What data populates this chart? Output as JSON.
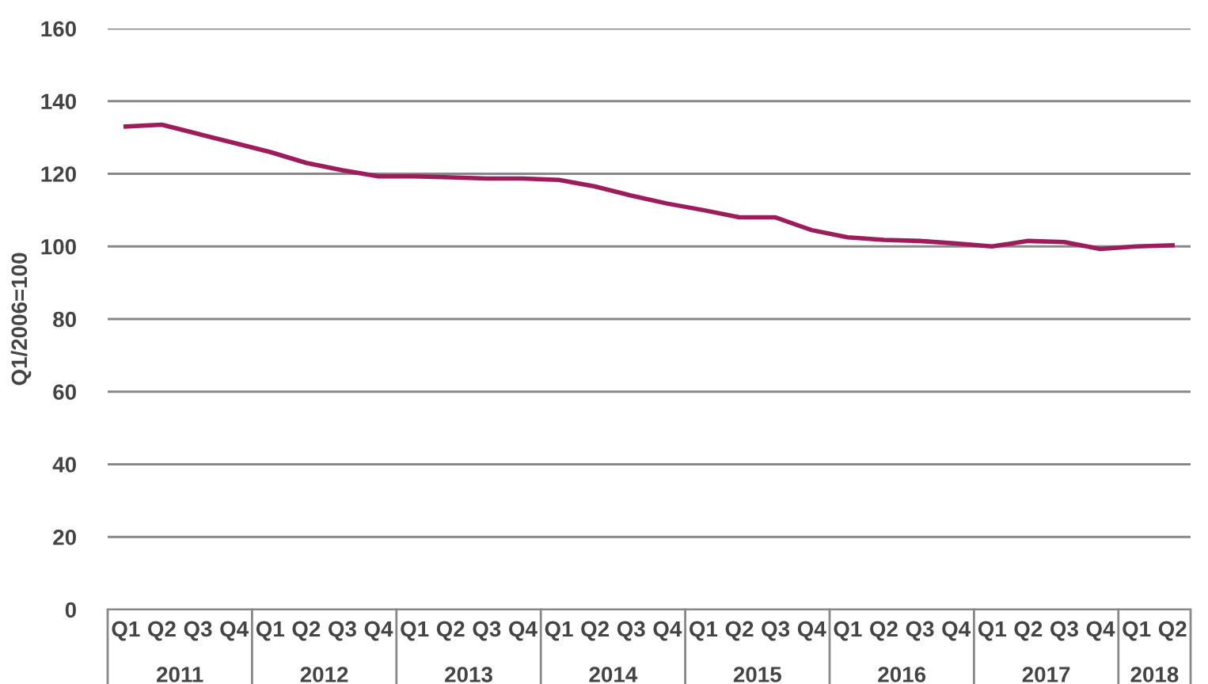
{
  "chart_data": {
    "type": "line",
    "ylabel": "Q1/2006=100",
    "categories": [
      "Q1",
      "Q2",
      "Q3",
      "Q4",
      "Q1",
      "Q2",
      "Q3",
      "Q4",
      "Q1",
      "Q2",
      "Q3",
      "Q4",
      "Q1",
      "Q2",
      "Q3",
      "Q4",
      "Q1",
      "Q2",
      "Q3",
      "Q4",
      "Q1",
      "Q2",
      "Q3",
      "Q4",
      "Q1",
      "Q2",
      "Q3",
      "Q4",
      "Q1",
      "Q2"
    ],
    "series": [
      {
        "color": "#9c1c5c",
        "values": [
          133,
          133.5,
          131,
          128.5,
          126,
          123,
          121,
          119.3,
          119.3,
          119,
          118.7,
          118.7,
          118.3,
          116.5,
          114,
          111.8,
          110,
          108,
          108,
          104.5,
          102.5,
          101.8,
          101.5,
          100.8,
          100,
          101.5,
          101.2,
          99.3,
          100,
          100.3
        ]
      }
    ],
    "annotations": [
      "2011",
      "2012",
      "2013",
      "2014",
      "2015",
      "2016",
      "2017",
      "2018"
    ],
    "ylim": [
      0,
      160
    ],
    "yticks": [
      0,
      20,
      40,
      60,
      80,
      100,
      120,
      140,
      160
    ],
    "grid": "y",
    "legend": false,
    "marker": "none",
    "line_style": "solid"
  }
}
